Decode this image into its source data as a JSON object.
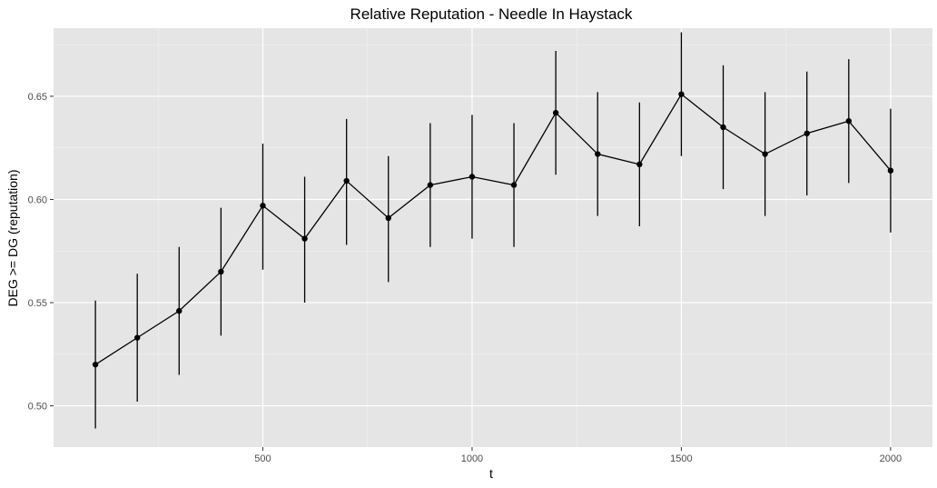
{
  "chart_data": {
    "type": "line",
    "title": "Relative Reputation - Needle In Haystack",
    "xlabel": "t",
    "ylabel": "DEG  >=  DG (reputation)",
    "xlim": [
      0,
      2100
    ],
    "ylim": [
      0.48,
      0.683
    ],
    "xticks": [
      500,
      1000,
      1500,
      2000
    ],
    "yticks": [
      0.5,
      0.55,
      0.6,
      0.65
    ],
    "ytick_labels": [
      "0.50",
      "0.55",
      "0.60",
      "0.65"
    ],
    "grid": true,
    "legend": "none",
    "series": [
      {
        "x": [
          100,
          200,
          300,
          400,
          500,
          600,
          700,
          800,
          900,
          1000,
          1100,
          1200,
          1300,
          1400,
          1500,
          1600,
          1700,
          1800,
          1900,
          2000
        ],
        "y": [
          0.52,
          0.533,
          0.546,
          0.565,
          0.597,
          0.581,
          0.609,
          0.591,
          0.607,
          0.611,
          0.607,
          0.642,
          0.622,
          0.617,
          0.651,
          0.635,
          0.622,
          0.632,
          0.638,
          0.614
        ],
        "ymin": [
          0.489,
          0.502,
          0.515,
          0.534,
          0.566,
          0.55,
          0.578,
          0.56,
          0.577,
          0.581,
          0.577,
          0.612,
          0.592,
          0.587,
          0.621,
          0.605,
          0.592,
          0.602,
          0.608,
          0.584
        ],
        "ymax": [
          0.551,
          0.564,
          0.577,
          0.596,
          0.627,
          0.611,
          0.639,
          0.621,
          0.637,
          0.641,
          0.637,
          0.672,
          0.652,
          0.647,
          0.681,
          0.665,
          0.652,
          0.662,
          0.668,
          0.644
        ]
      }
    ],
    "colors": {
      "panel_background": "#E5E5E5",
      "grid_major": "#FFFFFF",
      "grid_minor": "#F2F2F2",
      "line": "#000000",
      "tick_text": "#4D4D4D",
      "title_text": "#000000"
    }
  }
}
